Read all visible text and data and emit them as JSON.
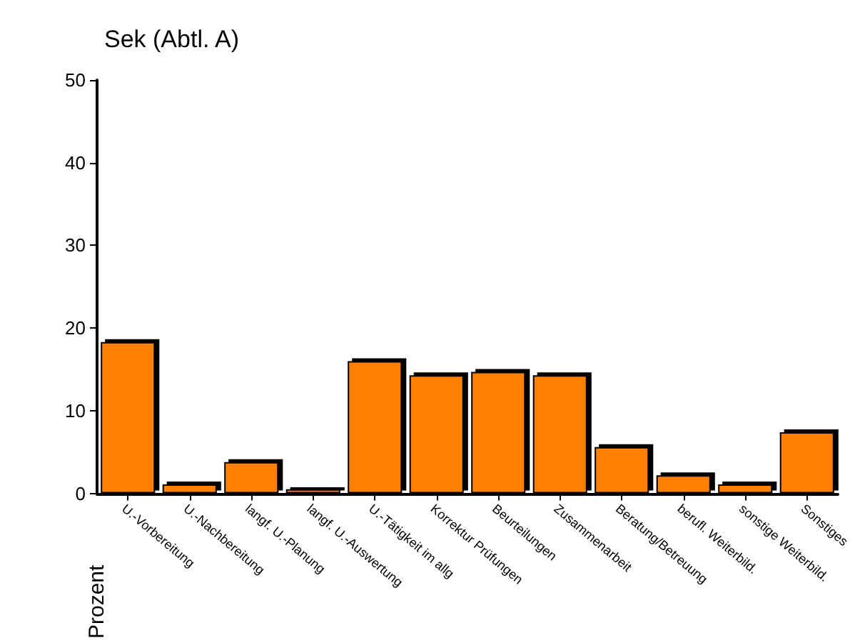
{
  "chart_data": {
    "type": "bar",
    "title": "Sek (Abtl. A)",
    "ylabel": "Prozent",
    "categories": [
      "U.-Vorbereitung",
      "U.-Nachbereitung",
      "langf. U.-Planung",
      "langf. U.-Auswertung",
      "U.-Tätigkeit im allg",
      "Korrektur Prüfungen",
      "Beurteilungen",
      "Zusammenarbeit",
      "Beratung/Betreuung",
      "berufl. Weiterbild.",
      "sonstige Weiterbild.",
      "Sonstiges"
    ],
    "values": [
      18.3,
      1.1,
      3.8,
      0.5,
      16.0,
      14.3,
      14.7,
      14.3,
      5.6,
      2.2,
      1.1,
      7.4
    ],
    "color": "#ff8000",
    "ylim": [
      0,
      50
    ],
    "yticks": [
      0,
      10,
      20,
      30,
      40,
      50
    ],
    "grid": false
  }
}
